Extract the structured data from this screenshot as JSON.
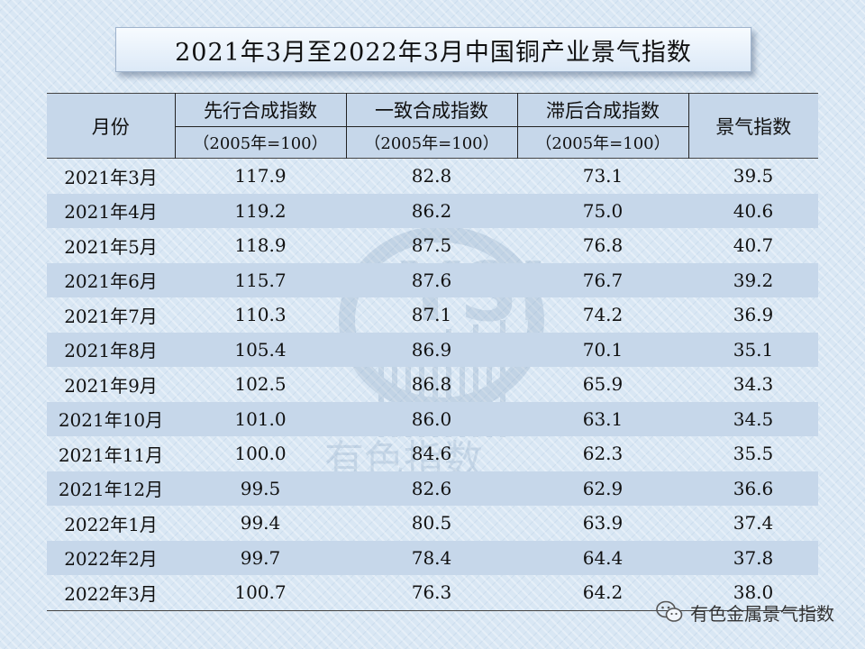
{
  "title": "2021年3月至2022年3月中国铜产业景气指数",
  "header": {
    "month": "月份",
    "leading": "先行合成指数",
    "coincident": "一致合成指数",
    "lagging": "滞后合成指数",
    "base": "（2005年=100）",
    "prosperity": "景气指数"
  },
  "rows": [
    {
      "month": "2021年3月",
      "leading": "117.9",
      "coincident": "82.8",
      "lagging": "73.1",
      "prosperity": "39.5"
    },
    {
      "month": "2021年4月",
      "leading": "119.2",
      "coincident": "86.2",
      "lagging": "75.0",
      "prosperity": "40.6"
    },
    {
      "month": "2021年5月",
      "leading": "118.9",
      "coincident": "87.5",
      "lagging": "76.8",
      "prosperity": "40.7"
    },
    {
      "month": "2021年6月",
      "leading": "115.7",
      "coincident": "87.6",
      "lagging": "76.7",
      "prosperity": "39.2"
    },
    {
      "month": "2021年7月",
      "leading": "110.3",
      "coincident": "87.1",
      "lagging": "74.2",
      "prosperity": "36.9"
    },
    {
      "month": "2021年8月",
      "leading": "105.4",
      "coincident": "86.9",
      "lagging": "70.1",
      "prosperity": "35.1"
    },
    {
      "month": "2021年9月",
      "leading": "102.5",
      "coincident": "86.8",
      "lagging": "65.9",
      "prosperity": "34.3"
    },
    {
      "month": "2021年10月",
      "leading": "101.0",
      "coincident": "86.0",
      "lagging": "63.1",
      "prosperity": "34.5"
    },
    {
      "month": "2021年11月",
      "leading": "100.0",
      "coincident": "84.6",
      "lagging": "62.3",
      "prosperity": "35.5"
    },
    {
      "month": "2021年12月",
      "leading": "99.5",
      "coincident": "82.6",
      "lagging": "62.9",
      "prosperity": "36.6"
    },
    {
      "month": "2022年1月",
      "leading": "99.4",
      "coincident": "80.5",
      "lagging": "63.9",
      "prosperity": "37.4"
    },
    {
      "month": "2022年2月",
      "leading": "99.7",
      "coincident": "78.4",
      "lagging": "64.4",
      "prosperity": "37.8"
    },
    {
      "month": "2022年3月",
      "leading": "100.7",
      "coincident": "76.3",
      "lagging": "64.2",
      "prosperity": "38.0"
    }
  ],
  "watermark": {
    "text": "有色指数",
    "icon": "ysi-logo-watermark"
  },
  "footer": {
    "icon": "wechat-icon",
    "account": "有色金属景气指数"
  }
}
